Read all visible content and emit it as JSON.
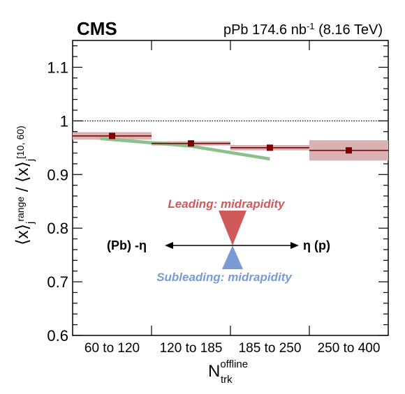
{
  "header": {
    "experiment": "CMS",
    "lumi_prefix": "pPb 174.6 nb",
    "lumi_exponent": "-1",
    "energy": "(8.16 TeV)"
  },
  "chart_data": {
    "type": "scatter",
    "xlabel": {
      "main": "N",
      "superscript": "offline",
      "subscript": "trk"
    },
    "ylabel": {
      "part1": "⟨x⟩",
      "sub1": "j",
      "sub1_range": "range",
      "separator": " / ",
      "part2": "⟨x⟩",
      "sub2": "j",
      "sub2_range": "[10, 60)"
    },
    "categories": [
      "60 to 120",
      "120 to 185",
      "185 to 250",
      "250 to 400"
    ],
    "ylim": [
      0.6,
      1.15
    ],
    "yticks": [
      "0.6",
      "0.7",
      "0.8",
      "0.9",
      "1",
      "1.1"
    ],
    "ytick_values": [
      0.6,
      0.7,
      0.8,
      0.9,
      1.0,
      1.1
    ],
    "reference_line": 1.0,
    "series": [
      {
        "values": [
          0.972,
          0.958,
          0.95,
          0.945
        ],
        "sys_uncertainty": [
          0.007,
          0.004,
          0.005,
          0.019
        ],
        "color": "#800000",
        "band_color": "#d9b3b3"
      }
    ],
    "model_band": {
      "color": "#8cc08c",
      "x_fraction": [
        0.35,
        1.5,
        2.5
      ],
      "y_values": [
        0.967,
        0.953,
        0.929
      ],
      "half_width": 0.003
    },
    "annotations": {
      "leading": "Leading: midrapidity",
      "subleading": "Subleading: midrapidity",
      "left": "(Pb) -η",
      "right": "η (p)",
      "leading_color": "#d05a5a",
      "subleading_color": "#7a9ad6"
    },
    "grid": false
  }
}
